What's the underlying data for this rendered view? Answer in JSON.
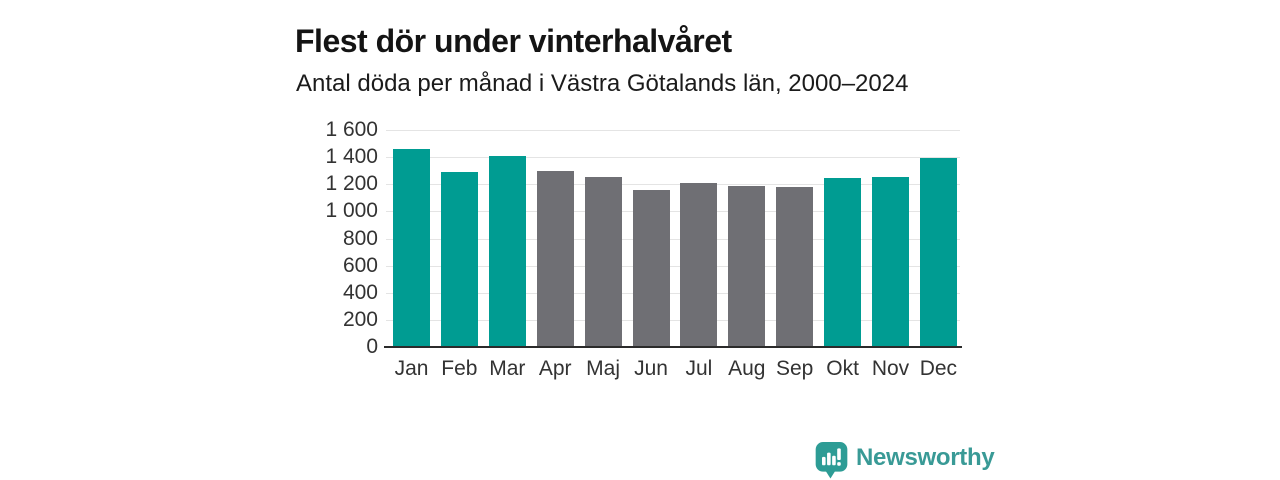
{
  "header": {
    "title": "Flest dör under vinterhalvåret",
    "subtitle": "Antal döda per månad i Västra Götalands län, 2000–2024"
  },
  "chart_data": {
    "type": "bar",
    "title": "Flest dör under vinterhalvåret",
    "subtitle": "Antal döda per månad i Västra Götalands län, 2000–2024",
    "categories": [
      "Jan",
      "Feb",
      "Mar",
      "Apr",
      "Maj",
      "Jun",
      "Jul",
      "Aug",
      "Sep",
      "Okt",
      "Nov",
      "Dec"
    ],
    "values": [
      1460,
      1290,
      1405,
      1295,
      1255,
      1155,
      1210,
      1185,
      1180,
      1245,
      1255,
      1390
    ],
    "bar_colors": [
      "#009C92",
      "#009C92",
      "#009C92",
      "#6F6F74",
      "#6F6F74",
      "#6F6F74",
      "#6F6F74",
      "#6F6F74",
      "#6F6F74",
      "#009C92",
      "#009C92",
      "#009C92"
    ],
    "highlight_color": "#009C92",
    "muted_color": "#6F6F74",
    "ylim": [
      0,
      1600
    ],
    "yticks": [
      0,
      200,
      400,
      600,
      800,
      1000,
      1200,
      1400,
      1600
    ],
    "ytick_labels": [
      "0",
      "200",
      "400",
      "600",
      "800",
      "1 000",
      "1 200",
      "1 400",
      "1 600"
    ],
    "xlabel": "",
    "ylabel": "",
    "grid": true,
    "grid_color": "#E4E4E4",
    "axis_color": "#2B2B2B",
    "tick_text_color": "#333333",
    "legend": "none"
  },
  "branding": {
    "logo_text": "Newsworthy",
    "logo_text_color": "#399A96",
    "logo_icon_color": "#2D9C95",
    "logo_icon_name": "newsworthy-bar-chart-bubble-icon"
  }
}
